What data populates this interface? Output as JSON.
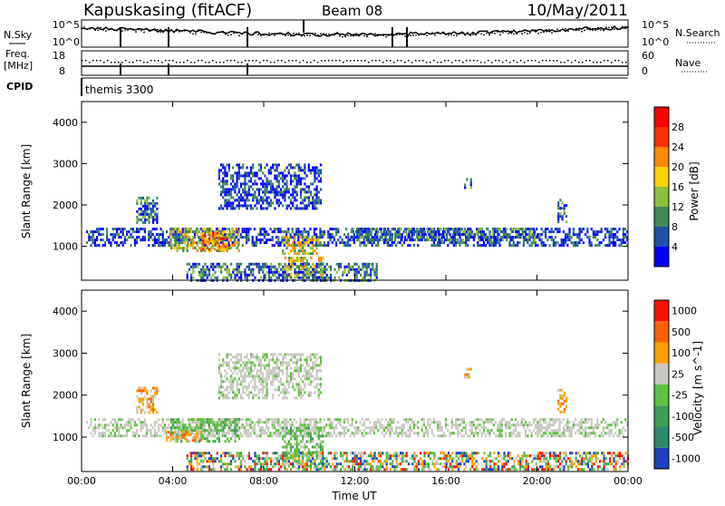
{
  "header": {
    "station": "Kapuskasing (fitACF)",
    "beam": "Beam 08",
    "date": "10/May/2011"
  },
  "noise_panel": {
    "left_label": "N.Sky",
    "right_label": "N.Search",
    "left_ticks": [
      "10^5",
      "10^0"
    ],
    "right_ticks": [
      "10^5",
      "10^0"
    ]
  },
  "freq_panel": {
    "left_label_1": "Freq.",
    "left_label_2": "[MHz]",
    "left_ticks": [
      "18",
      "8"
    ],
    "right_label": "Nave",
    "right_ticks": [
      "60",
      "0"
    ]
  },
  "cpid_panel": {
    "label": "CPID",
    "value": "themis 3300"
  },
  "chart_data": [
    {
      "type": "heatmap",
      "title": "",
      "xlabel": "",
      "ylabel": "Slant Range [km]",
      "xlim": [
        0,
        24
      ],
      "ylim": [
        180,
        4500
      ],
      "y_ticks": [
        "1000",
        "2000",
        "3000",
        "4000"
      ],
      "colorbar": {
        "label": "Power [dB]",
        "ticks": [
          "4",
          "8",
          "12",
          "16",
          "20",
          "24",
          "28"
        ],
        "colors": [
          "#0000ff",
          "#1c52a8",
          "#3d8a5a",
          "#8cc03c",
          "#ffd000",
          "#ff8800",
          "#ff3000",
          "#ff0000"
        ]
      },
      "regions": [
        {
          "t0": 0.2,
          "t1": 24.0,
          "r0": 1050,
          "r1": 1450,
          "level": "low"
        },
        {
          "t0": 3.9,
          "t1": 6.9,
          "r0": 900,
          "r1": 1450,
          "level": "high"
        },
        {
          "t0": 5.3,
          "t1": 6.4,
          "r0": 950,
          "r1": 1350,
          "level": "max"
        },
        {
          "t0": 8.8,
          "t1": 10.4,
          "r0": 850,
          "r1": 1250,
          "level": "high"
        },
        {
          "t0": 8.9,
          "t1": 10.6,
          "r0": 250,
          "r1": 750,
          "level": "high"
        },
        {
          "t0": 6.0,
          "t1": 10.5,
          "r0": 1900,
          "r1": 3000,
          "level": "low"
        },
        {
          "t0": 2.4,
          "t1": 3.3,
          "r0": 1550,
          "r1": 2200,
          "level": "mid"
        },
        {
          "t0": 4.6,
          "t1": 13.0,
          "r0": 200,
          "r1": 600,
          "level": "mid"
        },
        {
          "t0": 16.8,
          "t1": 17.1,
          "r0": 2450,
          "r1": 2650,
          "level": "mid"
        },
        {
          "t0": 20.9,
          "t1": 21.3,
          "r0": 1600,
          "r1": 2150,
          "level": "mid"
        },
        {
          "t0": 11.8,
          "t1": 20.0,
          "r0": 1150,
          "r1": 1450,
          "level": "mid"
        }
      ]
    },
    {
      "type": "heatmap",
      "title": "",
      "xlabel": "Time UT",
      "ylabel": "Slant Range [km]",
      "xlim": [
        0,
        24
      ],
      "ylim": [
        180,
        4500
      ],
      "x_ticks": [
        "00:00",
        "04:00",
        "08:00",
        "12:00",
        "16:00",
        "20:00",
        "00:00"
      ],
      "y_ticks": [
        "1000",
        "2000",
        "3000",
        "4000"
      ],
      "colorbar": {
        "label": "Velocity [m s^-1]",
        "ticks": [
          "1000",
          "500",
          "100",
          "25",
          "-25",
          "-100",
          "-500",
          "-1000"
        ],
        "colors": [
          "#1f3fbf",
          "#2a8a6a",
          "#3ca050",
          "#60c040",
          "#c8c8c0",
          "#ffa000",
          "#ff6000",
          "#ff1000"
        ]
      },
      "regions": [
        {
          "t0": 0.2,
          "t1": 24.0,
          "r0": 1050,
          "r1": 1450,
          "level": "gray"
        },
        {
          "t0": 3.9,
          "t1": 6.9,
          "r0": 900,
          "r1": 1450,
          "level": "green"
        },
        {
          "t0": 3.7,
          "t1": 5.2,
          "r0": 900,
          "r1": 1150,
          "level": "orange"
        },
        {
          "t0": 8.8,
          "t1": 10.6,
          "r0": 250,
          "r1": 1250,
          "level": "green"
        },
        {
          "t0": 6.0,
          "t1": 10.5,
          "r0": 1900,
          "r1": 3000,
          "level": "gray"
        },
        {
          "t0": 2.4,
          "t1": 3.3,
          "r0": 1600,
          "r1": 2200,
          "level": "orange"
        },
        {
          "t0": 16.8,
          "t1": 17.1,
          "r0": 2450,
          "r1": 2650,
          "level": "orange"
        },
        {
          "t0": 20.9,
          "t1": 21.3,
          "r0": 1600,
          "r1": 2150,
          "level": "orange"
        },
        {
          "t0": 4.6,
          "t1": 24.0,
          "r0": 200,
          "r1": 650,
          "level": "mixed"
        }
      ]
    }
  ]
}
